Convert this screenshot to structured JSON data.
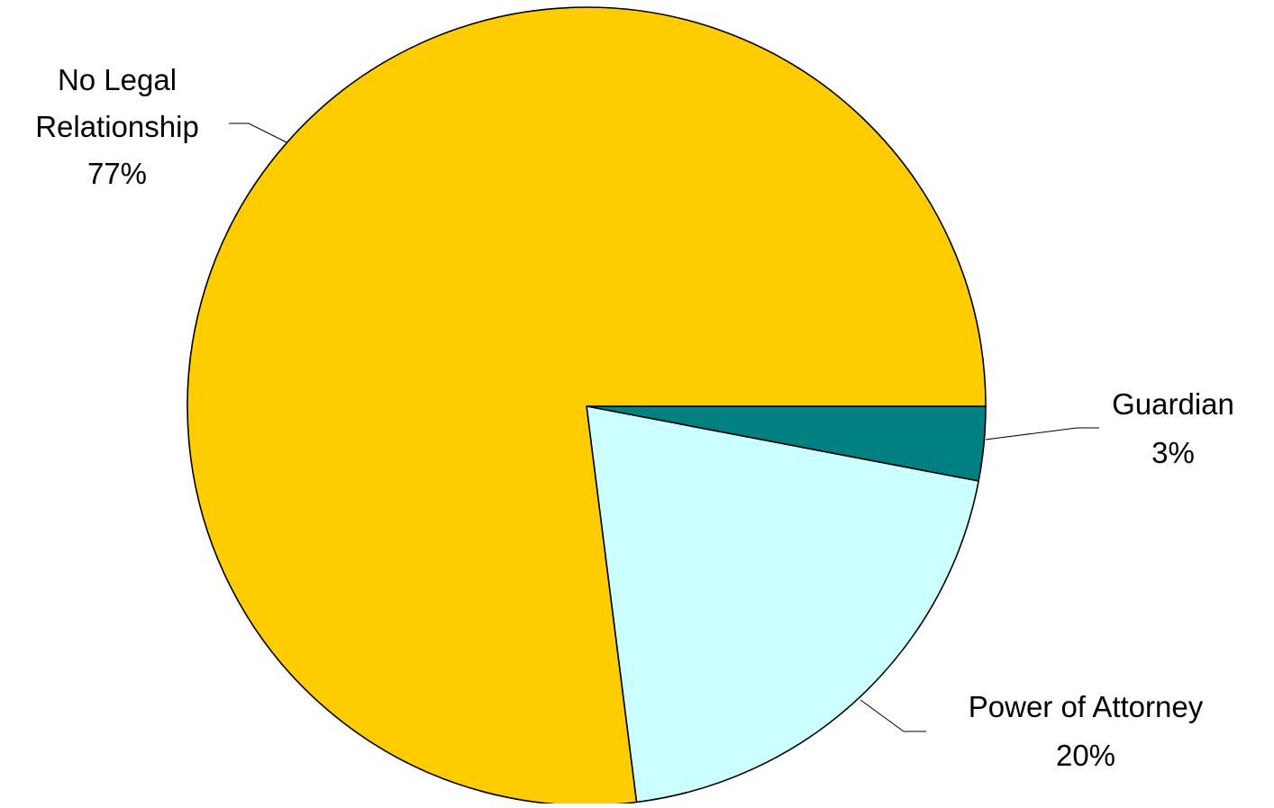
{
  "chart_data": {
    "type": "pie",
    "title": "",
    "start_angle_deg": 0,
    "direction": "clockwise",
    "slices": [
      {
        "label_lines": [
          "Guardian"
        ],
        "percent_text": "3%",
        "value": 3,
        "color": "#008080"
      },
      {
        "label_lines": [
          "Power of Attorney"
        ],
        "percent_text": "20%",
        "value": 20,
        "color": "#CCFFFF"
      },
      {
        "label_lines": [
          "No Legal",
          "Relationship"
        ],
        "percent_text": "77%",
        "value": 77,
        "color": "#FFCC00"
      }
    ]
  }
}
